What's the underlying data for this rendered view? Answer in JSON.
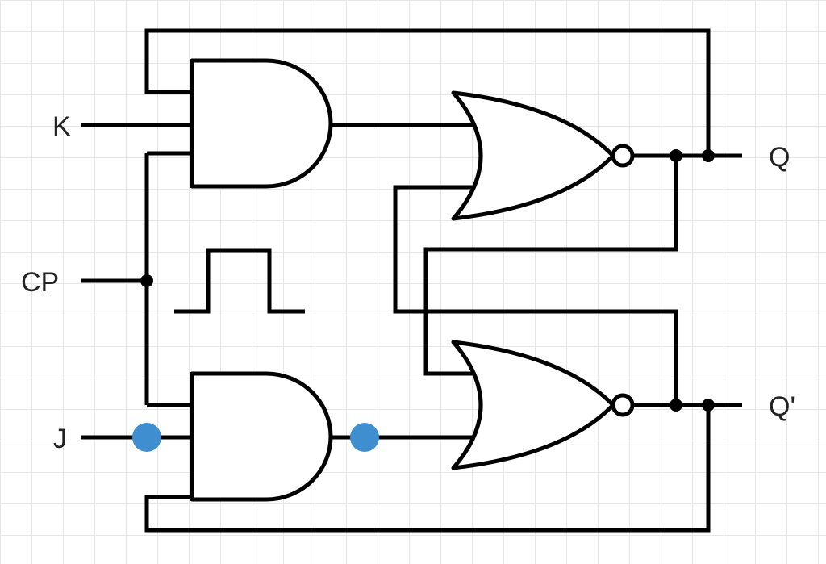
{
  "labels": {
    "k": "K",
    "cp": "CP",
    "j": "J",
    "q": "Q",
    "q_bar": "Q'"
  },
  "colors": {
    "wire": "#000000",
    "grid": "#e6e6e6",
    "junction": "#000000",
    "marker": "#3f8ed0"
  },
  "components": {
    "and_gates": [
      "and-gate-k",
      "and-gate-j"
    ],
    "nor_gates": [
      "nor-gate-top",
      "nor-gate-bottom"
    ],
    "clock_symbol": "pulse"
  }
}
